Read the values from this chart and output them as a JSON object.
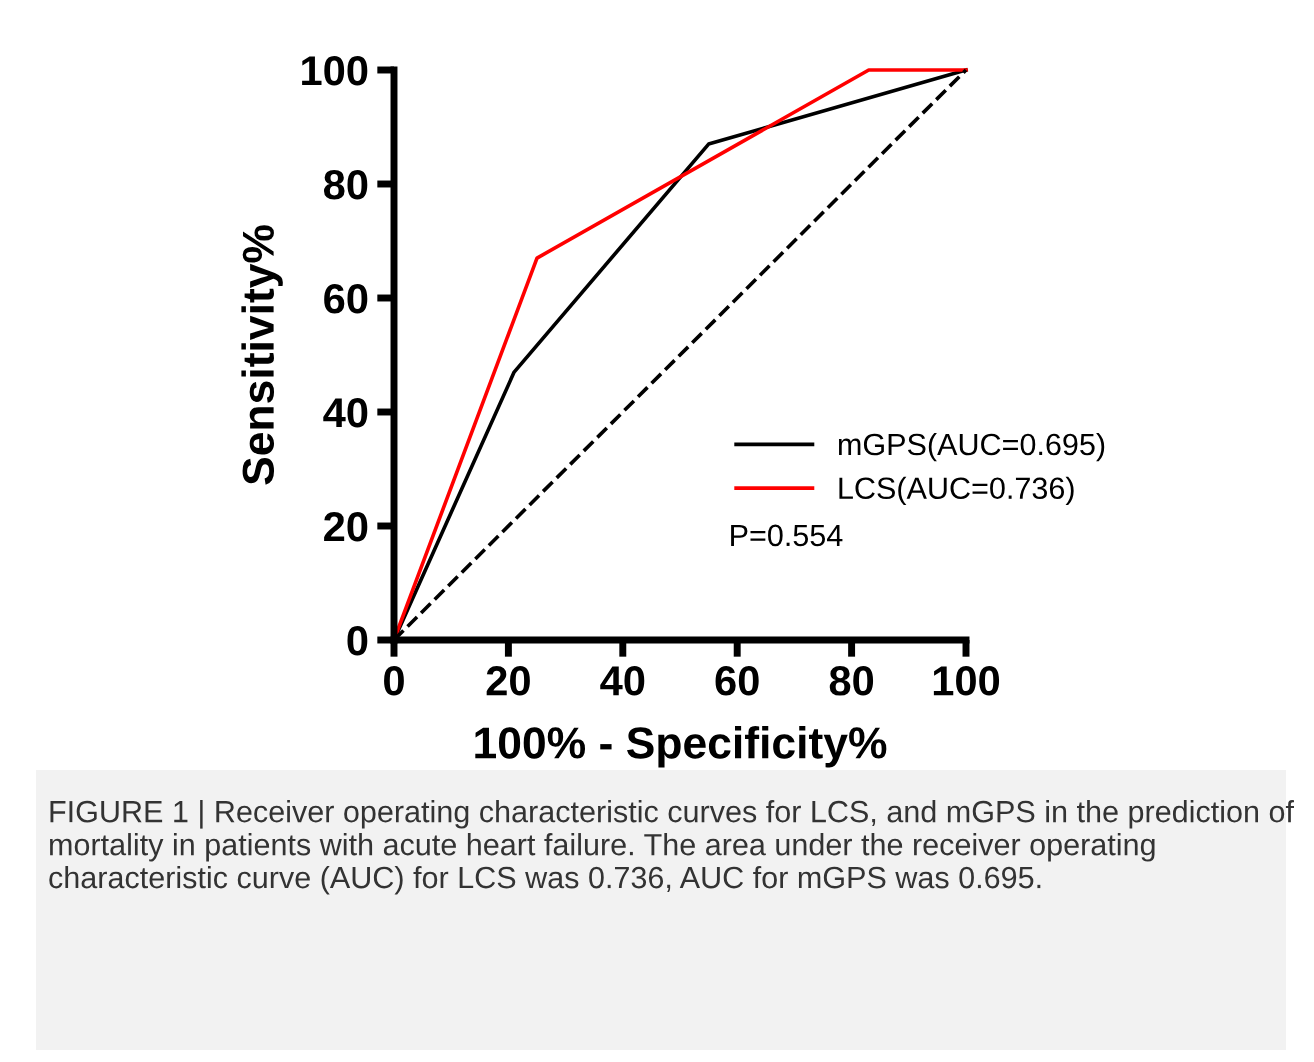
{
  "chart_data": {
    "type": "line",
    "xlabel": "100% - Specificity%",
    "ylabel": "Sensitivity%",
    "series": [
      {
        "name": "mGPS(AUC=0.695)",
        "color": "#000000",
        "x": [
          0,
          21,
          55,
          100
        ],
        "values": [
          0,
          47,
          87,
          100
        ]
      },
      {
        "name": "LCS(AUC=0.736)",
        "color": "#ff0000",
        "x": [
          0,
          25,
          83,
          100
        ],
        "values": [
          0,
          67,
          100,
          100
        ]
      },
      {
        "color": "#000000",
        "x": [
          0,
          100
        ],
        "values": [
          0,
          100
        ],
        "line_style": "dashed"
      }
    ],
    "xlim": [
      0,
      100
    ],
    "ylim": [
      0,
      100
    ],
    "xticks": [
      0,
      20,
      40,
      60,
      80,
      100
    ],
    "yticks": [
      0,
      20,
      40,
      60,
      80,
      100
    ],
    "grid": false,
    "legend": "right",
    "marker": "none",
    "annotations": [
      "P=0.554",
      "FIGURE 1 | Receiver operating characteristic curves for LCS, and mGPS in the prediction of mortality in patients with acute heart failure. The area under the receiver operating characteristic curve (AUC) for LCS was 0.736, AUC for mGPS was 0.695."
    ]
  }
}
